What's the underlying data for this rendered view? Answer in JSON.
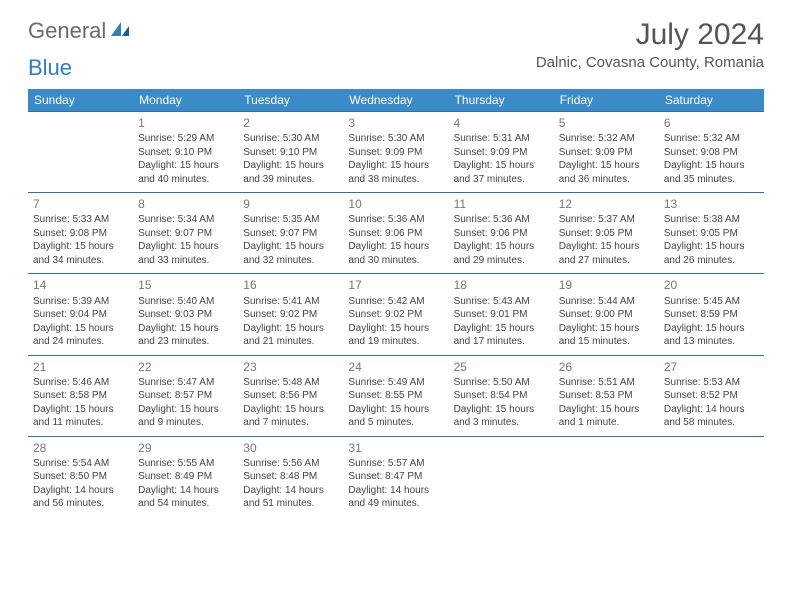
{
  "logo": {
    "text_general": "General",
    "text_blue": "Blue"
  },
  "title": "July 2024",
  "location": "Dalnic, Covasna County, Romania",
  "day_headers": [
    "Sunday",
    "Monday",
    "Tuesday",
    "Wednesday",
    "Thursday",
    "Friday",
    "Saturday"
  ],
  "colors": {
    "header_bg": "#3b8bc9",
    "header_text": "#ffffff",
    "row_border": "#2f6fa8",
    "text": "#444444",
    "daynum": "#777777",
    "page_bg": "#ffffff"
  },
  "weeks": [
    [
      null,
      {
        "n": "1",
        "sr": "Sunrise: 5:29 AM",
        "ss": "Sunset: 9:10 PM",
        "d1": "Daylight: 15 hours",
        "d2": "and 40 minutes."
      },
      {
        "n": "2",
        "sr": "Sunrise: 5:30 AM",
        "ss": "Sunset: 9:10 PM",
        "d1": "Daylight: 15 hours",
        "d2": "and 39 minutes."
      },
      {
        "n": "3",
        "sr": "Sunrise: 5:30 AM",
        "ss": "Sunset: 9:09 PM",
        "d1": "Daylight: 15 hours",
        "d2": "and 38 minutes."
      },
      {
        "n": "4",
        "sr": "Sunrise: 5:31 AM",
        "ss": "Sunset: 9:09 PM",
        "d1": "Daylight: 15 hours",
        "d2": "and 37 minutes."
      },
      {
        "n": "5",
        "sr": "Sunrise: 5:32 AM",
        "ss": "Sunset: 9:09 PM",
        "d1": "Daylight: 15 hours",
        "d2": "and 36 minutes."
      },
      {
        "n": "6",
        "sr": "Sunrise: 5:32 AM",
        "ss": "Sunset: 9:08 PM",
        "d1": "Daylight: 15 hours",
        "d2": "and 35 minutes."
      }
    ],
    [
      {
        "n": "7",
        "sr": "Sunrise: 5:33 AM",
        "ss": "Sunset: 9:08 PM",
        "d1": "Daylight: 15 hours",
        "d2": "and 34 minutes."
      },
      {
        "n": "8",
        "sr": "Sunrise: 5:34 AM",
        "ss": "Sunset: 9:07 PM",
        "d1": "Daylight: 15 hours",
        "d2": "and 33 minutes."
      },
      {
        "n": "9",
        "sr": "Sunrise: 5:35 AM",
        "ss": "Sunset: 9:07 PM",
        "d1": "Daylight: 15 hours",
        "d2": "and 32 minutes."
      },
      {
        "n": "10",
        "sr": "Sunrise: 5:36 AM",
        "ss": "Sunset: 9:06 PM",
        "d1": "Daylight: 15 hours",
        "d2": "and 30 minutes."
      },
      {
        "n": "11",
        "sr": "Sunrise: 5:36 AM",
        "ss": "Sunset: 9:06 PM",
        "d1": "Daylight: 15 hours",
        "d2": "and 29 minutes."
      },
      {
        "n": "12",
        "sr": "Sunrise: 5:37 AM",
        "ss": "Sunset: 9:05 PM",
        "d1": "Daylight: 15 hours",
        "d2": "and 27 minutes."
      },
      {
        "n": "13",
        "sr": "Sunrise: 5:38 AM",
        "ss": "Sunset: 9:05 PM",
        "d1": "Daylight: 15 hours",
        "d2": "and 26 minutes."
      }
    ],
    [
      {
        "n": "14",
        "sr": "Sunrise: 5:39 AM",
        "ss": "Sunset: 9:04 PM",
        "d1": "Daylight: 15 hours",
        "d2": "and 24 minutes."
      },
      {
        "n": "15",
        "sr": "Sunrise: 5:40 AM",
        "ss": "Sunset: 9:03 PM",
        "d1": "Daylight: 15 hours",
        "d2": "and 23 minutes."
      },
      {
        "n": "16",
        "sr": "Sunrise: 5:41 AM",
        "ss": "Sunset: 9:02 PM",
        "d1": "Daylight: 15 hours",
        "d2": "and 21 minutes."
      },
      {
        "n": "17",
        "sr": "Sunrise: 5:42 AM",
        "ss": "Sunset: 9:02 PM",
        "d1": "Daylight: 15 hours",
        "d2": "and 19 minutes."
      },
      {
        "n": "18",
        "sr": "Sunrise: 5:43 AM",
        "ss": "Sunset: 9:01 PM",
        "d1": "Daylight: 15 hours",
        "d2": "and 17 minutes."
      },
      {
        "n": "19",
        "sr": "Sunrise: 5:44 AM",
        "ss": "Sunset: 9:00 PM",
        "d1": "Daylight: 15 hours",
        "d2": "and 15 minutes."
      },
      {
        "n": "20",
        "sr": "Sunrise: 5:45 AM",
        "ss": "Sunset: 8:59 PM",
        "d1": "Daylight: 15 hours",
        "d2": "and 13 minutes."
      }
    ],
    [
      {
        "n": "21",
        "sr": "Sunrise: 5:46 AM",
        "ss": "Sunset: 8:58 PM",
        "d1": "Daylight: 15 hours",
        "d2": "and 11 minutes."
      },
      {
        "n": "22",
        "sr": "Sunrise: 5:47 AM",
        "ss": "Sunset: 8:57 PM",
        "d1": "Daylight: 15 hours",
        "d2": "and 9 minutes."
      },
      {
        "n": "23",
        "sr": "Sunrise: 5:48 AM",
        "ss": "Sunset: 8:56 PM",
        "d1": "Daylight: 15 hours",
        "d2": "and 7 minutes."
      },
      {
        "n": "24",
        "sr": "Sunrise: 5:49 AM",
        "ss": "Sunset: 8:55 PM",
        "d1": "Daylight: 15 hours",
        "d2": "and 5 minutes."
      },
      {
        "n": "25",
        "sr": "Sunrise: 5:50 AM",
        "ss": "Sunset: 8:54 PM",
        "d1": "Daylight: 15 hours",
        "d2": "and 3 minutes."
      },
      {
        "n": "26",
        "sr": "Sunrise: 5:51 AM",
        "ss": "Sunset: 8:53 PM",
        "d1": "Daylight: 15 hours",
        "d2": "and 1 minute."
      },
      {
        "n": "27",
        "sr": "Sunrise: 5:53 AM",
        "ss": "Sunset: 8:52 PM",
        "d1": "Daylight: 14 hours",
        "d2": "and 58 minutes."
      }
    ],
    [
      {
        "n": "28",
        "sr": "Sunrise: 5:54 AM",
        "ss": "Sunset: 8:50 PM",
        "d1": "Daylight: 14 hours",
        "d2": "and 56 minutes."
      },
      {
        "n": "29",
        "sr": "Sunrise: 5:55 AM",
        "ss": "Sunset: 8:49 PM",
        "d1": "Daylight: 14 hours",
        "d2": "and 54 minutes."
      },
      {
        "n": "30",
        "sr": "Sunrise: 5:56 AM",
        "ss": "Sunset: 8:48 PM",
        "d1": "Daylight: 14 hours",
        "d2": "and 51 minutes."
      },
      {
        "n": "31",
        "sr": "Sunrise: 5:57 AM",
        "ss": "Sunset: 8:47 PM",
        "d1": "Daylight: 14 hours",
        "d2": "and 49 minutes."
      },
      null,
      null,
      null
    ]
  ]
}
